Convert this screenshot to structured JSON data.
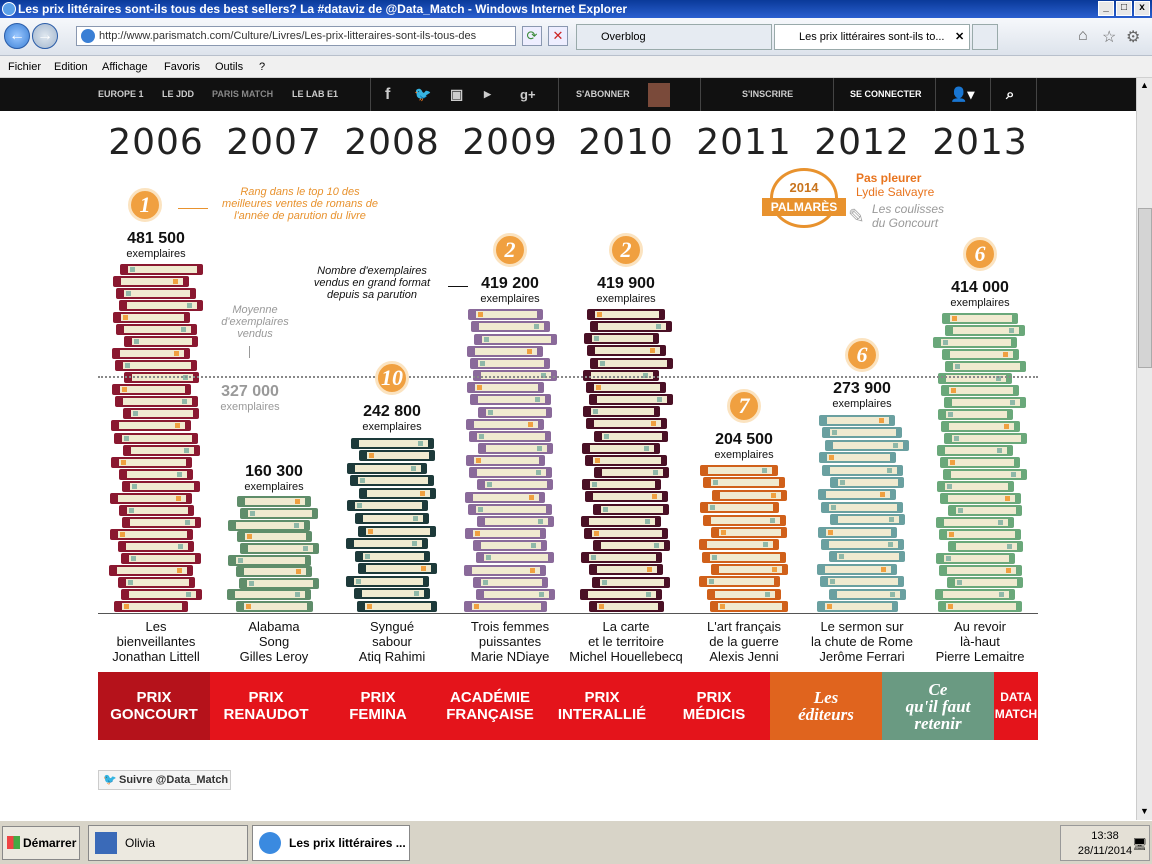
{
  "window": {
    "title": "Les prix littéraires sont-ils tous des best sellers? La #dataviz de @Data_Match - Windows Internet Explorer"
  },
  "browser": {
    "url": "http://www.parismatch.com/Culture/Livres/Les-prix-litteraires-sont-ils-tous-des",
    "tabs": [
      {
        "label": "Overblog"
      },
      {
        "label": "Les prix littéraires sont-ils to..."
      }
    ],
    "close_tab": "✕"
  },
  "menu": [
    "Fichier",
    "Edition",
    "Affichage",
    "Favoris",
    "Outils",
    "?"
  ],
  "site_nav": {
    "items": [
      "EUROPE 1",
      "LE JDD",
      "PARIS MATCH",
      "LE LAB E1"
    ],
    "subscribe": "S'ABONNER",
    "register": "S'INSCRIRE",
    "login": "SE CONNECTER"
  },
  "chart_data": {
    "type": "bar",
    "categories": [
      "2006",
      "2007",
      "2008",
      "2009",
      "2010",
      "2011",
      "2012",
      "2013"
    ],
    "values": [
      481500,
      160300,
      242800,
      419200,
      419900,
      204500,
      273900,
      414000
    ],
    "value_labels": [
      "481 500",
      "160 300",
      "242 800",
      "419 200",
      "419 900",
      "204 500",
      "273 900",
      "414 000"
    ],
    "unit": "exemplaires",
    "ranks": [
      "1",
      null,
      "10",
      "2",
      "2",
      "7",
      "6",
      "6"
    ],
    "average": {
      "value": 327000,
      "label": "327 000",
      "unit": "exemplaires",
      "note": "Moyenne\nd'exemplaires\nvendus"
    },
    "titles": [
      {
        "title": "Les\nbienveillantes",
        "author": "Jonathan Littell"
      },
      {
        "title": "Alabama\nSong",
        "author": "Gilles Leroy"
      },
      {
        "title": "Syngué\nsabour",
        "author": "Atiq Rahimi"
      },
      {
        "title": "Trois femmes\npuissantes",
        "author": "Marie NDiaye"
      },
      {
        "title": "La carte\net le territoire",
        "author": "Michel Houellebecq"
      },
      {
        "title": "L'art français\nde la guerre",
        "author": "Alexis Jenni"
      },
      {
        "title": "Le sermon sur\nla chute de Rome",
        "author": "Jerôme Ferrari"
      },
      {
        "title": "Au revoir\nlà-haut",
        "author": "Pierre Lemaitre"
      }
    ],
    "colors": [
      "#8a1830",
      "#5f8d6a",
      "#1d3a3a",
      "#8a6a9a",
      "#4a1025",
      "#d0601a",
      "#6aa0a0",
      "#6aa87a"
    ],
    "annotations": {
      "rank_note": "Rang dans le top 10 des\nmeilleures ventes de romans de\nl'année de parution du livre",
      "count_note": "Nombre d'exemplaires\nvendus en grand format\ndepuis sa parution"
    },
    "ylim": [
      0,
      500000
    ]
  },
  "palmares": {
    "year": "2014",
    "label": "PALMARÈS",
    "book": "Pas pleurer",
    "author": "Lydie Salvayre",
    "link": "Les coulisses\ndu Goncourt"
  },
  "prizes": [
    {
      "label": "PRIX\nGONCOURT",
      "color": "#b5121b"
    },
    {
      "label": "PRIX\nRENAUDOT",
      "color": "#e4141b"
    },
    {
      "label": "PRIX\nFEMINA",
      "color": "#e4141b"
    },
    {
      "label": "ACADÉMIE\nFRANÇAISE",
      "color": "#e4141b"
    },
    {
      "label": "PRIX\nINTERALLIÉ",
      "color": "#e4141b"
    },
    {
      "label": "PRIX\nMÉDICIS",
      "color": "#e4141b"
    },
    {
      "label": "Les\néditeurs",
      "color": "#e0641e"
    },
    {
      "label": "Ce\nqu'il faut\nretenir",
      "color": "#6a9a82"
    },
    {
      "label": "DATA\nMATCH",
      "color": "#e4141b"
    }
  ],
  "follow": "Suivre @Data_Match",
  "taskbar": {
    "start": "Démarrer",
    "tasks": [
      "Olivia",
      "Les prix littéraires ..."
    ],
    "time": "13:38",
    "date": "28/11/2014"
  }
}
